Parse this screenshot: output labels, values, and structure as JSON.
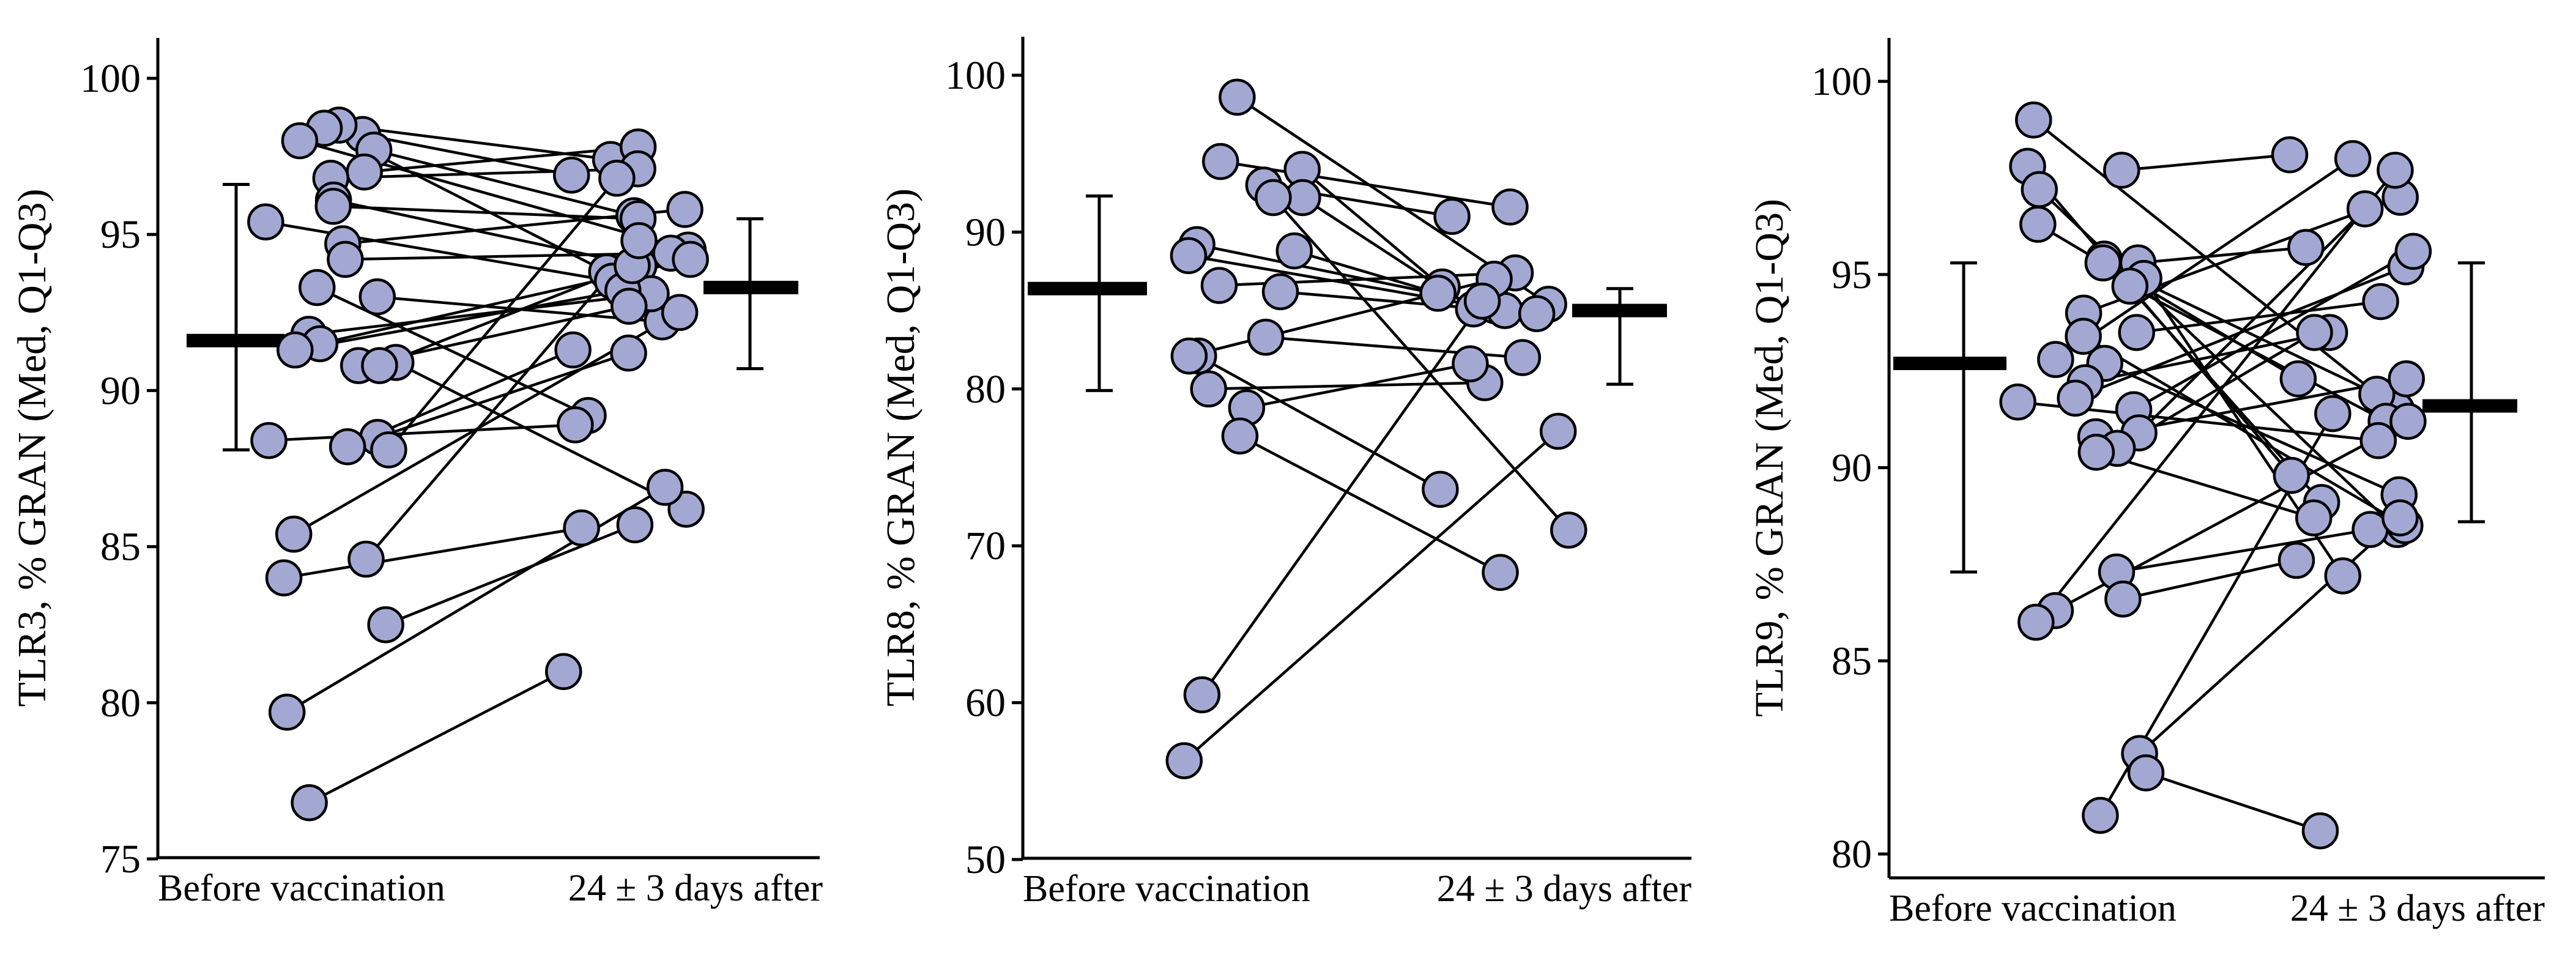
{
  "chart_data": [
    {
      "type": "paired-dot",
      "ylabel": "TLR3, % GRAN (Med, Q1-Q3)",
      "categories": [
        "Before vaccination",
        "24 ± 3 days after"
      ],
      "ylim": [
        75,
        100
      ],
      "yticks": [
        75,
        80,
        85,
        90,
        95,
        100
      ],
      "summary": [
        {
          "category": "Before vaccination",
          "median": 91.6,
          "q1": 88.1,
          "q3": 96.6
        },
        {
          "category": "24 ± 3 days after",
          "median": 93.3,
          "q1": 90.7,
          "q3": 95.5
        }
      ],
      "pairs": [
        {
          "before": 98.2,
          "after": 96.9
        },
        {
          "before": 98.5,
          "after": 97.4
        },
        {
          "before": 98.4,
          "after": 93.8
        },
        {
          "before": 98.0,
          "after": 94.5
        },
        {
          "before": 97.7,
          "after": 95.6
        },
        {
          "before": 97.0,
          "after": 97.8
        },
        {
          "before": 96.8,
          "after": 97.1
        },
        {
          "before": 96.1,
          "after": 94.0
        },
        {
          "before": 95.9,
          "after": 95.5
        },
        {
          "before": 95.4,
          "after": 93.5
        },
        {
          "before": 94.7,
          "after": 95.8
        },
        {
          "before": 94.2,
          "after": 94.4
        },
        {
          "before": 93.3,
          "after": 89.2
        },
        {
          "before": 93.0,
          "after": 92.2
        },
        {
          "before": 91.8,
          "after": 93.1
        },
        {
          "before": 91.5,
          "after": 94.2
        },
        {
          "before": 91.3,
          "after": 93.2
        },
        {
          "before": 90.9,
          "after": 86.2
        },
        {
          "before": 90.8,
          "after": 92.7
        },
        {
          "before": 90.8,
          "after": 94.0
        },
        {
          "before": 88.5,
          "after": 91.2
        },
        {
          "before": 88.4,
          "after": 88.9
        },
        {
          "before": 88.2,
          "after": 91.3
        },
        {
          "before": 88.1,
          "after": 96.8
        },
        {
          "before": 85.4,
          "after": 92.5
        },
        {
          "before": 84.6,
          "after": 94.8
        },
        {
          "before": 84.0,
          "after": 85.6
        },
        {
          "before": 82.5,
          "after": 85.7
        },
        {
          "before": 79.7,
          "after": 86.9
        },
        {
          "before": 76.8,
          "after": 81.0
        }
      ]
    },
    {
      "type": "paired-dot",
      "ylabel": "TLR8, % GRAN (Med, Q1-Q3)",
      "categories": [
        "Before vaccination",
        "24 ± 3 days after"
      ],
      "ylim": [
        50,
        100
      ],
      "yticks": [
        50,
        60,
        70,
        80,
        90,
        100
      ],
      "summary": [
        {
          "category": "Before vaccination",
          "median": 86.4,
          "q1": 79.9,
          "q3": 92.3
        },
        {
          "category": "24 ± 3 days after",
          "median": 85.0,
          "q1": 80.3,
          "q3": 86.4
        }
      ],
      "pairs": [
        {
          "before": 98.6,
          "after": 85.4
        },
        {
          "before": 94.5,
          "after": 91.6
        },
        {
          "before": 94.0,
          "after": 86.5
        },
        {
          "before": 93.0,
          "after": 91.0
        },
        {
          "before": 92.2,
          "after": 85.1
        },
        {
          "before": 92.2,
          "after": 71.0
        },
        {
          "before": 89.2,
          "after": 85.3
        },
        {
          "before": 88.8,
          "after": 86.1
        },
        {
          "before": 88.5,
          "after": 85.0
        },
        {
          "before": 86.6,
          "after": 87.4
        },
        {
          "before": 86.2,
          "after": 84.8
        },
        {
          "before": 83.3,
          "after": 82.0
        },
        {
          "before": 82.1,
          "after": 73.6
        },
        {
          "before": 82.1,
          "after": 87.0
        },
        {
          "before": 80.0,
          "after": 80.4
        },
        {
          "before": 78.8,
          "after": 81.6
        },
        {
          "before": 77.0,
          "after": 68.3
        },
        {
          "before": 60.5,
          "after": 85.6
        },
        {
          "before": 56.3,
          "after": 77.3
        }
      ]
    },
    {
      "type": "paired-dot",
      "ylabel": "TLR9, % GRAN (Med, Q1-Q3)",
      "categories": [
        "Before vaccination",
        "24 ± 3 days after"
      ],
      "ylim": [
        80,
        100
      ],
      "yticks": [
        80,
        85,
        90,
        95,
        100
      ],
      "summary": [
        {
          "category": "Before vaccination",
          "median": 92.7,
          "q1": 87.3,
          "q3": 95.3
        },
        {
          "category": "24 ± 3 days after",
          "median": 91.6,
          "q1": 88.6,
          "q3": 95.3
        }
      ],
      "pairs": [
        {
          "before": 99.0,
          "after": 91.5
        },
        {
          "before": 97.8,
          "after": 89.8
        },
        {
          "before": 97.7,
          "after": 98.1
        },
        {
          "before": 97.2,
          "after": 88.4
        },
        {
          "before": 96.3,
          "after": 92.3
        },
        {
          "before": 95.4,
          "after": 89.1
        },
        {
          "before": 95.3,
          "after": 95.7
        },
        {
          "before": 95.3,
          "after": 91.9
        },
        {
          "before": 94.9,
          "after": 87.2
        },
        {
          "before": 94.7,
          "after": 91.2
        },
        {
          "before": 94.0,
          "after": 97.0
        },
        {
          "before": 93.5,
          "after": 94.3
        },
        {
          "before": 93.4,
          "after": 88.5
        },
        {
          "before": 92.8,
          "after": 98.0
        },
        {
          "before": 92.7,
          "after": 89.3
        },
        {
          "before": 92.2,
          "after": 93.5
        },
        {
          "before": 91.8,
          "after": 95.2
        },
        {
          "before": 91.7,
          "after": 90.7
        },
        {
          "before": 91.5,
          "after": 95.6
        },
        {
          "before": 90.9,
          "after": 96.7
        },
        {
          "before": 90.8,
          "after": 92.3
        },
        {
          "before": 90.5,
          "after": 93.5
        },
        {
          "before": 90.4,
          "after": 88.7
        },
        {
          "before": 87.3,
          "after": 88.4
        },
        {
          "before": 86.6,
          "after": 87.6
        },
        {
          "before": 86.3,
          "after": 91.2
        },
        {
          "before": 86.0,
          "after": 97.7
        },
        {
          "before": 82.6,
          "after": 88.7
        },
        {
          "before": 82.1,
          "after": 80.6
        },
        {
          "before": 81.0,
          "after": 91.4
        }
      ]
    }
  ]
}
